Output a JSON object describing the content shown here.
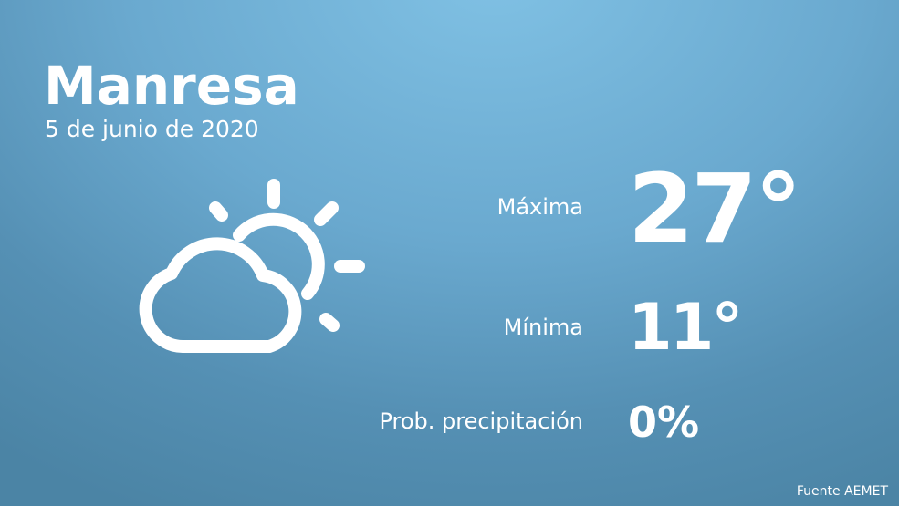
{
  "city": "Manresa",
  "date": "5 de junio de 2020",
  "weather_icon": "partly-cloudy-icon",
  "forecast": {
    "max_label": "Máxima",
    "max_value": "27°",
    "min_label": "Mínima",
    "min_value": "11°",
    "precip_label": "Prob. precipitación",
    "precip_value": "0%"
  },
  "source": "Fuente AEMET",
  "colors": {
    "background_top": "#80c1e4",
    "background_bottom": "#4b84a5",
    "text": "#ffffff"
  }
}
